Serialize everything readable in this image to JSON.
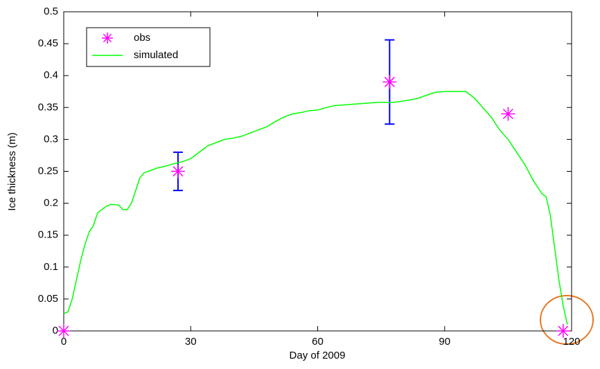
{
  "chart_data": {
    "type": "line",
    "xlabel": "Day of 2009",
    "ylabel": "Ice thickness (m)",
    "xlim": [
      0,
      120
    ],
    "xticks": [
      0,
      30,
      60,
      90,
      120
    ],
    "ylim": [
      0,
      0.5
    ],
    "yticks": [
      0,
      0.05,
      0.1,
      0.15,
      0.2,
      0.25,
      0.3,
      0.35,
      0.4,
      0.45,
      0.5
    ],
    "legend": "upper left",
    "grid": false,
    "series": [
      {
        "name": "obs",
        "type": "scatter",
        "color": "#ff00ff",
        "error_color": "#0000ff",
        "x": [
          0,
          27,
          77,
          105,
          118
        ],
        "values": [
          0,
          0.25,
          0.39,
          0.34,
          0
        ],
        "errors": [
          null,
          0.03,
          0.066,
          null,
          null
        ]
      },
      {
        "name": "simulated",
        "type": "line",
        "color": "#00ff00",
        "x": [
          0,
          1,
          2,
          3,
          4,
          5,
          6,
          7,
          8,
          9,
          10,
          11,
          12,
          13,
          14,
          15,
          16,
          17,
          18,
          19,
          20,
          22,
          24,
          26,
          28,
          30,
          32,
          34,
          36,
          38,
          40,
          42,
          44,
          46,
          48,
          50,
          52,
          54,
          56,
          58,
          60,
          62,
          64,
          66,
          68,
          70,
          72,
          74,
          76,
          78,
          80,
          82,
          84,
          86,
          88,
          90,
          92,
          94,
          95,
          97,
          99,
          101,
          103,
          105,
          107,
          109,
          111,
          113,
          114,
          115,
          116,
          117,
          118,
          119
        ],
        "values": [
          0.027,
          0.03,
          0.05,
          0.08,
          0.11,
          0.135,
          0.155,
          0.165,
          0.185,
          0.19,
          0.195,
          0.198,
          0.198,
          0.197,
          0.19,
          0.19,
          0.2,
          0.22,
          0.24,
          0.248,
          0.25,
          0.255,
          0.258,
          0.262,
          0.265,
          0.27,
          0.28,
          0.29,
          0.295,
          0.3,
          0.302,
          0.305,
          0.31,
          0.315,
          0.32,
          0.328,
          0.335,
          0.34,
          0.342,
          0.345,
          0.346,
          0.35,
          0.353,
          0.354,
          0.355,
          0.356,
          0.357,
          0.358,
          0.358,
          0.358,
          0.36,
          0.362,
          0.365,
          0.37,
          0.374,
          0.375,
          0.375,
          0.375,
          0.375,
          0.365,
          0.35,
          0.335,
          0.315,
          0.3,
          0.28,
          0.26,
          0.235,
          0.215,
          0.21,
          0.18,
          0.13,
          0.08,
          0.04,
          0.01
        ]
      }
    ]
  }
}
